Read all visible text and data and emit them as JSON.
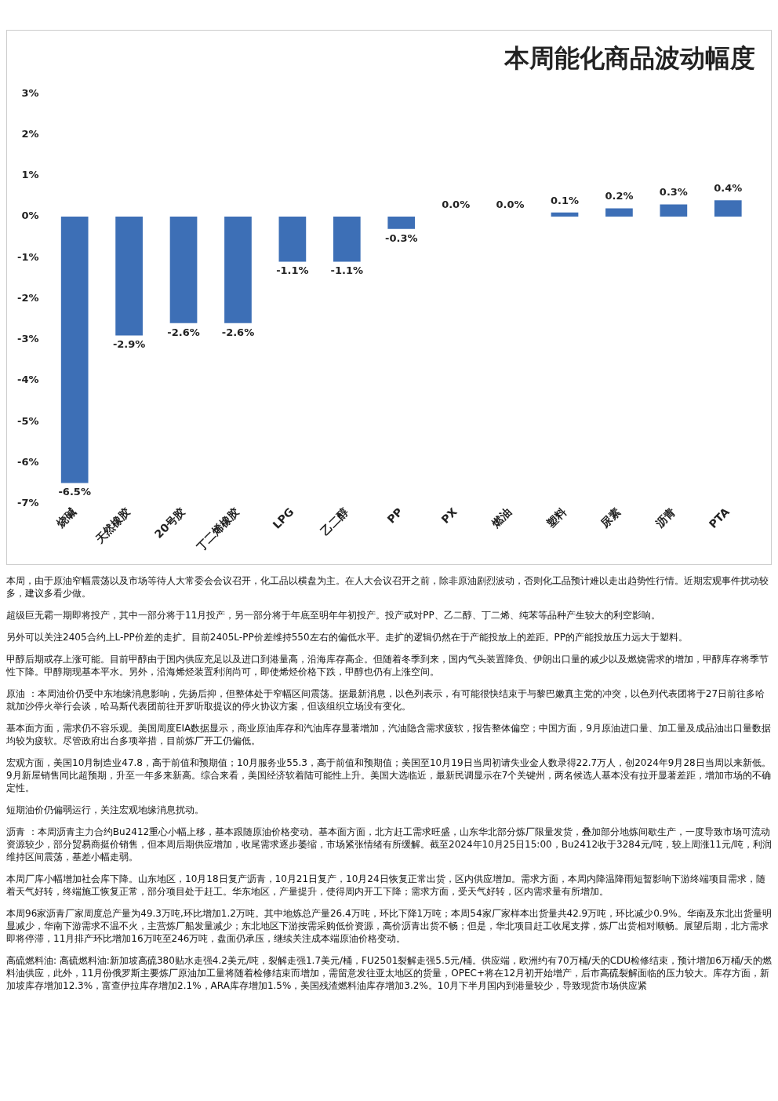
{
  "chart_data": {
    "type": "bar",
    "title": "本周能化商品波动幅度",
    "categories": [
      "烧碱",
      "天然橡胶",
      "20号胶",
      "丁二烯橡胶",
      "LPG",
      "乙二醇",
      "PP",
      "PX",
      "燃油",
      "塑料",
      "尿素",
      "沥青",
      "PTA"
    ],
    "values": [
      -6.5,
      -2.9,
      -2.6,
      -2.6,
      -1.1,
      -1.1,
      -0.3,
      0.0,
      0.0,
      0.1,
      0.2,
      0.3,
      0.4
    ],
    "value_labels": [
      "-6.5%",
      "-2.9%",
      "-2.6%",
      "-2.6%",
      "-1.1%",
      "-1.1%",
      "-0.3%",
      "0.0%",
      "0.0%",
      "0.1%",
      "0.2%",
      "0.3%",
      "0.4%"
    ],
    "color": "#3d6fb6",
    "ylim": [
      -7,
      3
    ],
    "yticks": [
      {
        "value": 3,
        "label": "3%"
      },
      {
        "value": 2,
        "label": "2%"
      },
      {
        "value": 1,
        "label": "1%"
      },
      {
        "value": 0,
        "label": "0%"
      },
      {
        "value": -1,
        "label": "-1%"
      },
      {
        "value": -2,
        "label": "-2%"
      },
      {
        "value": -3,
        "label": "-3%"
      },
      {
        "value": -4,
        "label": "-4%"
      },
      {
        "value": -5,
        "label": "-5%"
      },
      {
        "value": -6,
        "label": "-6%"
      },
      {
        "value": -7,
        "label": "-7%"
      }
    ],
    "grid": false,
    "legend": false,
    "annotations": [
      "本周，由于原油窄幅震荡以及市场等待人大常委会会议召开，化工品以横盘为主。在人大会议召开之前，除非原油剧烈波动，否则化工品预计难以走出趋势性行情。近期宏观事件扰动较多，建议多看少做。",
      "超级巨无霸一期即将投产，其中一部分将于11月投产，另一部分将于年底至明年年初投产。投产或对PP、乙二醇、丁二烯、纯苯等品种产生较大的利空影响。",
      "另外可以关注2405合约上L-PP价差的走扩。目前2405L-PP价差维持550左右的偏低水平。走扩的逻辑仍然在于产能投放上的差距。PP的产能投放压力远大于塑料。",
      "甲醇后期或存上涨可能。目前甲醇由于国内供应充足以及进口到港量高，沿海库存高企。但随着冬季到来，国内气头装置降负、伊朗出口量的减少以及燃烧需求的增加，甲醇库存将季节性下降。甲醇期现基本平水。另外，沿海烯烃装置利润尚可，即使烯烃价格下跌，甲醇也仍有上涨空间。",
      "原油 ：本周油价仍受中东地缘消息影响，先扬后抑，但整体处于窄幅区间震荡。据最新消息，以色列表示，有可能很快结束于与黎巴嫩真主党的冲突，以色列代表团将于27日前往多哈就加沙停火举行会谈，哈马斯代表团前往开罗听取提议的停火协议方案，但该组织立场没有变化。",
      "基本面方面，需求仍不容乐观。美国周度EIA数据显示，商业原油库存和汽油库存显著增加，汽油隐含需求疲软，报告整体偏空；中国方面，9月原油进口量、加工量及成品油出口量数据均较为疲软。尽管政府出台多项举措，目前炼厂开工仍偏低。",
      "宏观方面，美国10月制造业47.8，高于前值和预期值；10月服务业55.3，高于前值和预期值；美国至10月19日当周初请失业金人数录得22.7万人，创2024年9月28日当周以来新低。9月新屋销售同比超预期，升至一年多来新高。综合来看，美国经济软着陆可能性上升。美国大选临近，最新民调显示在7个关键州，两名候选人基本没有拉开显著差距，增加市场的不确定性。",
      "短期油价仍偏弱运行，关注宏观地缘消息扰动。",
      "沥青 ：本周沥青主力合约Bu2412重心小幅上移，基本跟随原油价格变动。基本面方面，北方赶工需求旺盛，山东华北部分炼厂限量发货，叠加部分地炼间歇生产，一度导致市场可流动资源较少，部分贸易商挺价销售，但本周后期供应增加，收尾需求逐步萎缩，市场紧张情绪有所缓解。截至2024年10月25日15:00，Bu2412收于3284元/吨，较上周涨11元/吨，利润维持区间震荡，基差小幅走弱。",
      "本周厂库小幅增加社会库下降。山东地区，10月18日复产沥青，10月21日复产，10月24日恢复正常出货，区内供应增加。需求方面，本周内降温降雨短暂影响下游终端项目需求，随着天气好转，终端施工恢复正常，部分项目处于赶工。华东地区，产量提升，使得周内开工下降；需求方面，受天气好转，区内需求量有所增加。",
      "本周96家沥青厂家周度总产量为49.3万吨,环比增加1.2万吨。其中地炼总产量26.4万吨，环比下降1万吨；本周54家厂家样本出货量共42.9万吨，环比减少0.9%。华南及东北出货量明显减少，华南下游需求不温不火，主营炼厂船发量减少；东北地区下游按需采购低价资源，高价沥青出货不畅；但是，华北项目赶工收尾支撑，炼厂出货相对顺畅。展望后期，北方需求即将停滞，11月排产环比增加16万吨至246万吨，盘面仍承压，继续关注成本端原油价格变动。",
      "高硫燃料油: 高硫燃料油:新加坡高硫380贴水走强4.2美元/吨，裂解走强1.7美元/桶，FU2501裂解走强5.5元/桶。供应端，欧洲约有70万桶/天的CDU检修结束，预计增加6万桶/天的燃料油供应，此外，11月份俄罗斯主要炼厂原油加工量将随着检修结束而增加，需留意发往亚太地区的货量，OPEC+将在12月初开始增产，后市高硫裂解面临的压力较大。库存方面，新加坡库存增加12.3%，富查伊拉库存增加2.1%，ARA库存增加1.5%，美国残渣燃料油库存增加3.2%。10月下半月国内到港量较少，导致现货市场供应紧"
    ]
  }
}
